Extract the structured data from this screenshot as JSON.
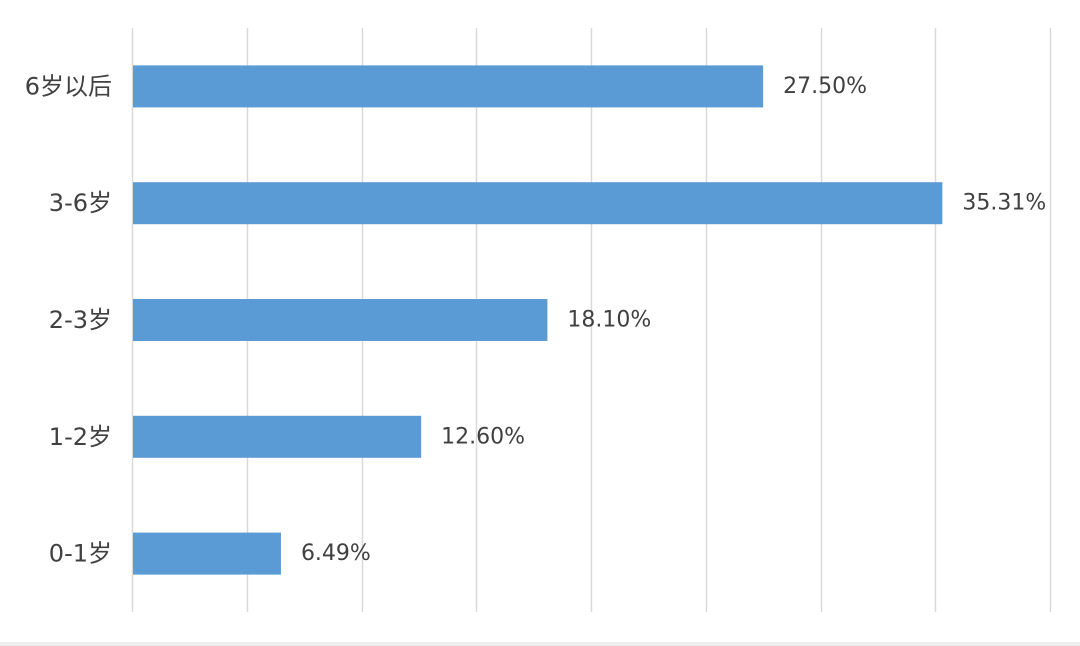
{
  "chart_data": {
    "type": "bar",
    "orientation": "horizontal",
    "categories": [
      "6岁以后",
      "3-6岁",
      "2-3岁",
      "1-2岁",
      "0-1岁"
    ],
    "values": [
      27.5,
      35.31,
      18.1,
      12.6,
      6.49
    ],
    "value_labels": [
      "27.50%",
      "35.31%",
      "18.10%",
      "12.60%",
      "6.49%"
    ],
    "xlim": [
      0,
      40
    ],
    "grid": "vertical",
    "colors": {
      "bar": "#5b9bd5",
      "grid": "#d9d9d9",
      "text": "#404040"
    }
  }
}
